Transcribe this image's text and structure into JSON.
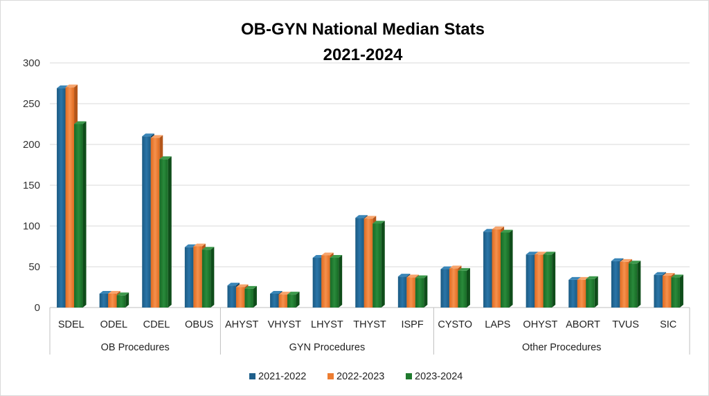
{
  "chart_data": {
    "type": "bar",
    "title": [
      "OB-GYN National Median Stats",
      "2021-2024"
    ],
    "xlabel": "",
    "ylabel": "",
    "ylim": [
      0,
      300
    ],
    "yticks": [
      0,
      50,
      100,
      150,
      200,
      250,
      300
    ],
    "grid": true,
    "legend_position": "bottom",
    "groups": [
      {
        "name": "OB Procedures",
        "categories": [
          "SDEL",
          "ODEL",
          "CDEL",
          "OBUS"
        ]
      },
      {
        "name": "GYN Procedures",
        "categories": [
          "AHYST",
          "VHYST",
          "LHYST",
          "THYST",
          "ISPF"
        ]
      },
      {
        "name": "Other Procedures",
        "categories": [
          "CYSTO",
          "LAPS",
          "OHYST",
          "ABORT",
          "TVUS",
          "SIC"
        ]
      }
    ],
    "categories": [
      "SDEL",
      "ODEL",
      "CDEL",
      "OBUS",
      "AHYST",
      "VHYST",
      "LHYST",
      "THYST",
      "ISPF",
      "CYSTO",
      "LAPS",
      "OHYST",
      "ABORT",
      "TVUS",
      "SIC"
    ],
    "series": [
      {
        "name": "2021-2022",
        "color": "#1f5f8b",
        "values": [
          269,
          17,
          210,
          74,
          27,
          17,
          61,
          110,
          38,
          47,
          93,
          65,
          34,
          57,
          40
        ]
      },
      {
        "name": "2022-2023",
        "color": "#ed7d31",
        "values": [
          270,
          17,
          208,
          75,
          25,
          16,
          64,
          109,
          37,
          48,
          96,
          65,
          34,
          56,
          39
        ]
      },
      {
        "name": "2023-2024",
        "color": "#1f7a2e",
        "values": [
          225,
          15,
          182,
          71,
          23,
          16,
          61,
          103,
          36,
          45,
          92,
          65,
          35,
          54,
          37
        ]
      }
    ]
  }
}
